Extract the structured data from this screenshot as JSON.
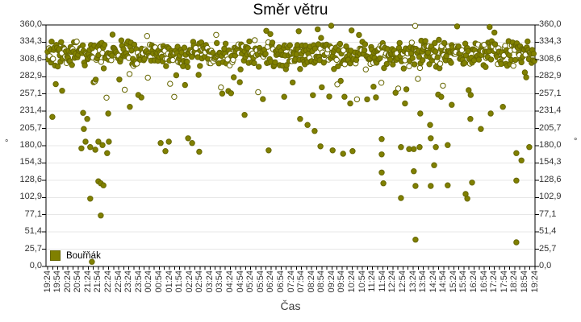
{
  "chart_data": {
    "type": "scatter",
    "title": "Směr větru",
    "xlabel": "Čas",
    "ylabel_left": "°",
    "ylabel_right": "°",
    "legend": [
      {
        "label": "Bouřňák",
        "color": "#808000"
      }
    ],
    "ylim": [
      0,
      360
    ],
    "x_total_minutes": 1440,
    "x_minor_tick_minutes": 15,
    "x_label_every_minutes": 30,
    "grid": "horizontal",
    "colors": {
      "point_fill": "#808000",
      "point_stroke": "#666600",
      "hollow_fill": "#ffffff",
      "grid_line": "#e7e7e7",
      "axis": "#000000",
      "tick_text": "#333333",
      "title_text": "#000000",
      "background": "#ffffff"
    },
    "yticks": [
      {
        "v": 0,
        "label": "0,0"
      },
      {
        "v": 25.714,
        "label": "25,7"
      },
      {
        "v": 51.429,
        "label": "51,4"
      },
      {
        "v": 77.143,
        "label": "77,1"
      },
      {
        "v": 102.857,
        "label": "102,9"
      },
      {
        "v": 128.571,
        "label": "128,6"
      },
      {
        "v": 154.286,
        "label": "154,3"
      },
      {
        "v": 180,
        "label": "180,0"
      },
      {
        "v": 205.714,
        "label": "205,7"
      },
      {
        "v": 231.429,
        "label": "231,4"
      },
      {
        "v": 257.143,
        "label": "257,1"
      },
      {
        "v": 282.857,
        "label": "282,9"
      },
      {
        "v": 308.571,
        "label": "308,6"
      },
      {
        "v": 334.286,
        "label": "334,3"
      },
      {
        "v": 360,
        "label": "360,0"
      }
    ],
    "xtick_labels": [
      "19:24",
      "19:54",
      "20:24",
      "20:54",
      "21:24",
      "21:54",
      "22:24",
      "22:54",
      "23:24",
      "23:54",
      "00:24",
      "00:54",
      "01:24",
      "01:54",
      "02:24",
      "02:54",
      "03:24",
      "03:54",
      "04:24",
      "04:54",
      "05:24",
      "05:54",
      "06:24",
      "06:54",
      "07:24",
      "07:54",
      "08:24",
      "08:54",
      "09:24",
      "09:54",
      "10:24",
      "10:54",
      "11:24",
      "11:54",
      "12:24",
      "12:54",
      "13:24",
      "13:54",
      "14:24",
      "14:54",
      "15:24",
      "15:54",
      "16:24",
      "16:54",
      "17:24",
      "17:54",
      "18:24",
      "18:54",
      "19:24"
    ],
    "series": [
      {
        "name": "Bouřňák",
        "marker": "circle",
        "band": {
          "start_min": 0,
          "end_min": 1440,
          "step_min": 2,
          "center_deg": 317,
          "jitter_deg": 22,
          "low_tail_prob": 0.06,
          "low_tail_span": 55,
          "high_tail_prob": 0.018,
          "high_tail_span": 19,
          "hollow_prob": 0.22,
          "seed": 20
        },
        "outlier_points": [
          [
            14,
            223
          ],
          [
            43,
            262
          ],
          [
            100,
            176
          ],
          [
            105,
            229
          ],
          [
            107,
            205
          ],
          [
            112,
            186
          ],
          [
            117,
            220
          ],
          [
            126,
            178
          ],
          [
            126,
            101
          ],
          [
            131,
            7
          ],
          [
            141,
            174
          ],
          [
            150,
            186
          ],
          [
            150,
            127
          ],
          [
            157,
            124
          ],
          [
            157,
            76
          ],
          [
            162,
            181
          ],
          [
            165,
            121
          ],
          [
            176,
            169
          ],
          [
            179,
            228
          ],
          [
            181,
            186
          ],
          [
            243,
            238
          ],
          [
            277,
            252
          ],
          [
            334,
            184
          ],
          [
            348,
            172
          ],
          [
            358,
            186
          ],
          [
            415,
            191
          ],
          [
            427,
            184
          ],
          [
            448,
            171
          ],
          [
            582,
            226
          ],
          [
            653,
            173
          ],
          [
            699,
            253
          ],
          [
            746,
            220
          ],
          [
            768,
            211
          ],
          [
            789,
            202
          ],
          [
            806,
            179
          ],
          [
            842,
            173
          ],
          [
            873,
            168
          ],
          [
            877,
            253
          ],
          [
            894,
            243
          ],
          [
            901,
            172
          ],
          [
            963,
            268
          ],
          [
            970,
            252
          ],
          [
            987,
            190
          ],
          [
            987,
            167
          ],
          [
            987,
            140
          ],
          [
            992,
            124
          ],
          [
            1028,
            259
          ],
          [
            1044,
            178
          ],
          [
            1044,
            102
          ],
          [
            1056,
            243
          ],
          [
            1068,
            175
          ],
          [
            1082,
            175
          ],
          [
            1082,
            142
          ],
          [
            1087,
            120
          ],
          [
            1087,
            40
          ],
          [
            1099,
            178
          ],
          [
            1101,
            228
          ],
          [
            1130,
            211
          ],
          [
            1132,
            191
          ],
          [
            1132,
            120
          ],
          [
            1142,
            151
          ],
          [
            1147,
            178
          ],
          [
            1163,
            253
          ],
          [
            1182,
            181
          ],
          [
            1182,
            121
          ],
          [
            1194,
            241
          ],
          [
            1235,
            108
          ],
          [
            1240,
            101
          ],
          [
            1249,
            220
          ],
          [
            1254,
            125
          ],
          [
            1280,
            205
          ],
          [
            1306,
            357
          ],
          [
            1309,
            228
          ],
          [
            1345,
            238
          ],
          [
            1385,
            169
          ],
          [
            1385,
            128
          ],
          [
            1385,
            36
          ],
          [
            1400,
            158
          ],
          [
            1414,
            282
          ],
          [
            1423,
            178
          ]
        ]
      }
    ]
  }
}
